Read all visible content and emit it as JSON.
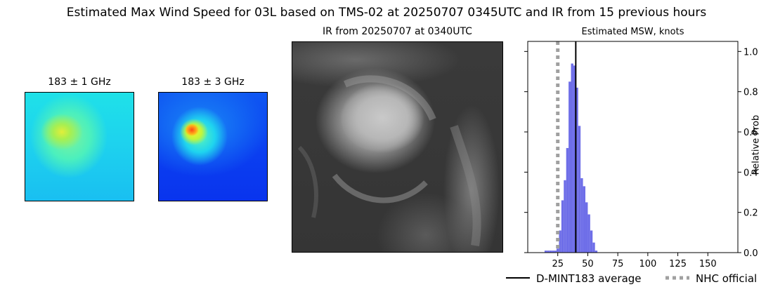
{
  "suptitle": "Estimated Max Wind Speed for 03L based on TMS-02 at 20250707 0345UTC and IR from 15 previous hours",
  "panels": {
    "mw1_title": "183 ± 1 GHz",
    "mw2_title": "183 ± 3 GHz",
    "ir_title": "IR from 20250707 at 0340UTC"
  },
  "chart_data": {
    "type": "bar",
    "title": "Estimated MSW, knots",
    "ylabel": "Relative Prob",
    "xlabel": "",
    "xlim": [
      0,
      175
    ],
    "ylim": [
      0,
      1.05
    ],
    "xticks": [
      25,
      50,
      75,
      100,
      125,
      150
    ],
    "yticks": [
      "0.0",
      "0.2",
      "0.4",
      "0.6",
      "0.8",
      "1.0"
    ],
    "bin_width": 2,
    "x": [
      14,
      16,
      18,
      20,
      22,
      24,
      26,
      28,
      30,
      32,
      34,
      36,
      38,
      40,
      42,
      44,
      46,
      48,
      50,
      52,
      54,
      56
    ],
    "values": [
      0.01,
      0.01,
      0.01,
      0.01,
      0.01,
      0.02,
      0.11,
      0.26,
      0.36,
      0.52,
      0.85,
      0.94,
      0.93,
      0.82,
      0.63,
      0.37,
      0.33,
      0.25,
      0.19,
      0.11,
      0.05,
      0.01
    ],
    "bar_color": "#6e6ee8",
    "average": 40,
    "official": 25,
    "average_color": "#000000",
    "official_color": "#a0a0a0",
    "legend": [
      {
        "label": "D-MINT183 average",
        "style": "solid"
      },
      {
        "label": "NHC official",
        "style": "dotted"
      }
    ],
    "legend_placement": "bottom"
  }
}
